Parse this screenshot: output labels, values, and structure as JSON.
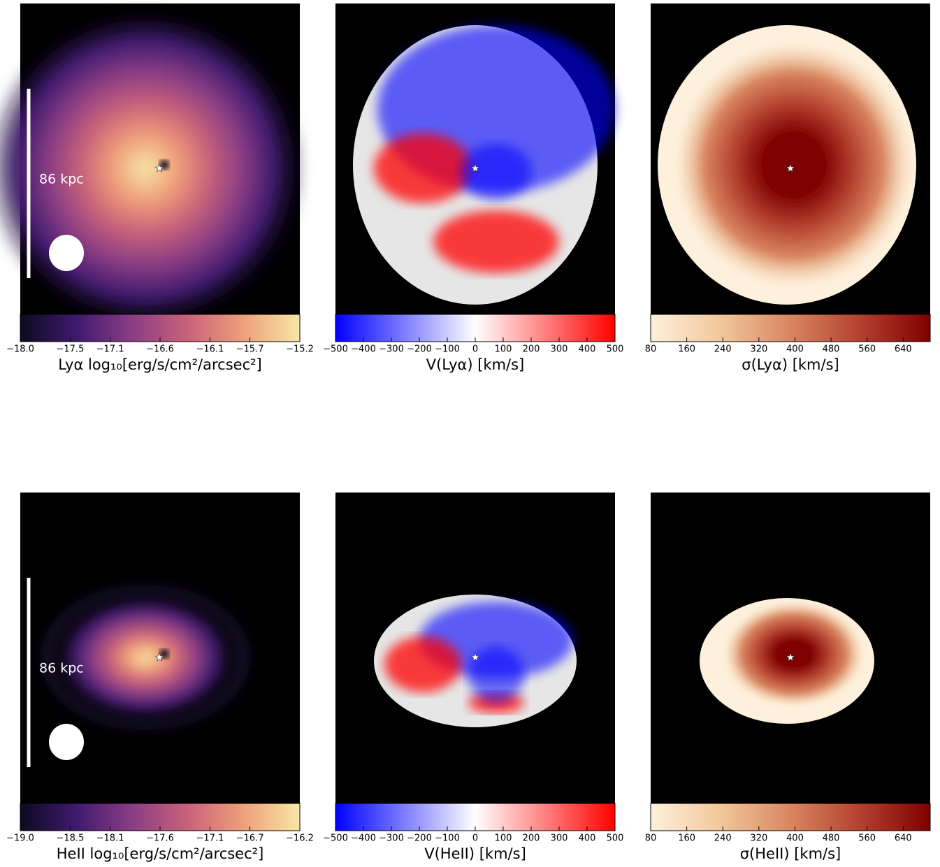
{
  "chart_data": [
    {
      "type": "heatmap",
      "colorbar_label": "Lyα log₁₀[erg/s/cm²/arcsec²]",
      "scale_bar_label": "86 kpc",
      "style": "emission",
      "extent": "large",
      "clim": [
        -18.0,
        -15.2
      ],
      "colormap": [
        "#0d0a1e",
        "#3e1a6e",
        "#8a3d84",
        "#c9627a",
        "#efa07a",
        "#f7e7a6"
      ],
      "cticks": [
        {
          "value": -18.0,
          "label": "−18.0"
        },
        {
          "value": -17.5,
          "label": "−17.5"
        },
        {
          "value": -17.1,
          "label": "−17.1"
        },
        {
          "value": -16.6,
          "label": "−16.6"
        },
        {
          "value": -16.1,
          "label": "−16.1"
        },
        {
          "value": -15.7,
          "label": "−15.7"
        },
        {
          "value": -15.2,
          "label": "−15.2"
        }
      ]
    },
    {
      "type": "heatmap",
      "colorbar_label": "V(Lyα) [km/s]",
      "style": "velocity",
      "extent": "large",
      "clim": [
        -500,
        500
      ],
      "colormap": [
        "#0000ff",
        "#ffffff",
        "#ff0000"
      ],
      "cticks": [
        {
          "value": -500,
          "label": "−500"
        },
        {
          "value": -400,
          "label": "−400"
        },
        {
          "value": -300,
          "label": "−300"
        },
        {
          "value": -200,
          "label": "−200"
        },
        {
          "value": -100,
          "label": "−100"
        },
        0,
        100,
        200,
        300,
        400,
        500
      ]
    },
    {
      "type": "heatmap",
      "colorbar_label": "σ(Lyα) [km/s]",
      "style": "dispersion",
      "extent": "large",
      "clim": [
        80,
        700
      ],
      "colormap": [
        "#fdf0dc",
        "#f2c79b",
        "#d98660",
        "#b3402f",
        "#7f0000"
      ],
      "cticks": [
        80,
        160,
        240,
        320,
        400,
        480,
        560,
        640
      ]
    },
    {
      "type": "heatmap",
      "colorbar_label": "HeII log₁₀[erg/s/cm²/arcsec²]",
      "scale_bar_label": "86 kpc",
      "style": "emission",
      "extent": "small",
      "clim": [
        -19.0,
        -16.2
      ],
      "colormap": [
        "#0d0a1e",
        "#3e1a6e",
        "#8a3d84",
        "#c9627a",
        "#efa07a",
        "#f7e7a6"
      ],
      "cticks": [
        {
          "value": -19.0,
          "label": "−19.0"
        },
        {
          "value": -18.5,
          "label": "−18.5"
        },
        {
          "value": -18.1,
          "label": "−18.1"
        },
        {
          "value": -17.6,
          "label": "−17.6"
        },
        {
          "value": -17.1,
          "label": "−17.1"
        },
        {
          "value": -16.7,
          "label": "−16.7"
        },
        {
          "value": -16.2,
          "label": "−16.2"
        }
      ]
    },
    {
      "type": "heatmap",
      "colorbar_label": "V(HeII) [km/s]",
      "style": "velocity",
      "extent": "small",
      "clim": [
        -500,
        500
      ],
      "colormap": [
        "#0000ff",
        "#ffffff",
        "#ff0000"
      ],
      "cticks": [
        {
          "value": -500,
          "label": "−500"
        },
        {
          "value": -400,
          "label": "−400"
        },
        {
          "value": -300,
          "label": "−300"
        },
        {
          "value": -200,
          "label": "−200"
        },
        {
          "value": -100,
          "label": "−100"
        },
        0,
        100,
        200,
        300,
        400,
        500
      ]
    },
    {
      "type": "heatmap",
      "colorbar_label": "σ(HeII) [km/s]",
      "style": "dispersion",
      "extent": "small",
      "clim": [
        80,
        700
      ],
      "colormap": [
        "#fdf0dc",
        "#f2c79b",
        "#d98660",
        "#b3402f",
        "#7f0000"
      ],
      "cticks": [
        80,
        160,
        240,
        320,
        400,
        480,
        560,
        640
      ]
    }
  ]
}
